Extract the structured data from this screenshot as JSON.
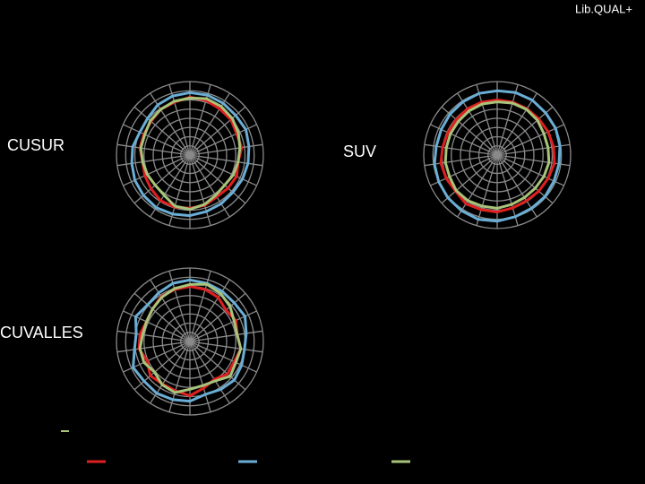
{
  "header": {
    "title": "Lib.QUAL+"
  },
  "chart_data": [
    {
      "type": "radar",
      "title": "CUSUR",
      "rlim": [
        1,
        9
      ],
      "rticks": [
        1,
        2,
        3,
        4,
        5,
        6,
        7,
        8,
        9
      ],
      "grid": true,
      "series": [
        {
          "color": "#e02020",
          "values": [
            7.3,
            7.2,
            7.0,
            6.9,
            6.6,
            6.7,
            6.3,
            6.6,
            6.5,
            6.4,
            6.7,
            6.8,
            6.9,
            6.9,
            6.6,
            6.4,
            6.2,
            6.5,
            6.5,
            6.6,
            6.9,
            7.0
          ]
        },
        {
          "color": "#6aaed6",
          "values": [
            7.8,
            7.8,
            7.7,
            7.6,
            7.7,
            7.5,
            7.4,
            7.3,
            7.2,
            7.3,
            7.4,
            7.6,
            7.7,
            7.8,
            7.7,
            7.6,
            7.4,
            7.3,
            7.0,
            7.1,
            7.5,
            7.7
          ]
        },
        {
          "color": "#a8c47a",
          "values": [
            7.2,
            7.4,
            7.3,
            7.1,
            6.8,
            6.5,
            6.3,
            6.2,
            6.0,
            6.2,
            6.6,
            6.9,
            6.8,
            6.2,
            6.0,
            6.1,
            6.2,
            6.4,
            6.4,
            6.7,
            6.9,
            7.1
          ]
        }
      ]
    },
    {
      "type": "radar",
      "title": "SUV",
      "rlim": [
        1,
        9
      ],
      "rticks": [
        1,
        2,
        3,
        4,
        5,
        6,
        7,
        8,
        9
      ],
      "grid": true,
      "series": [
        {
          "color": "#e02020",
          "values": [
            7.0,
            7.0,
            7.0,
            7.0,
            7.1,
            7.2,
            7.3,
            7.1,
            7.0,
            6.9,
            7.0,
            7.2,
            7.2,
            7.3,
            7.0,
            7.1,
            7.2,
            7.0,
            6.9,
            6.9,
            7.0,
            7.0
          ]
        },
        {
          "color": "#6aaed6",
          "values": [
            8.0,
            8.1,
            8.1,
            8.0,
            8.0,
            7.9,
            7.8,
            7.8,
            7.9,
            7.9,
            8.0,
            8.2,
            8.3,
            8.2,
            8.1,
            8.0,
            7.9,
            7.7,
            7.7,
            7.8,
            7.9,
            8.0
          ]
        },
        {
          "color": "#a8c47a",
          "values": [
            6.8,
            6.9,
            6.9,
            6.8,
            6.6,
            6.6,
            6.7,
            6.6,
            6.5,
            6.5,
            6.6,
            6.8,
            6.8,
            6.9,
            6.9,
            6.7,
            6.7,
            6.6,
            6.6,
            6.6,
            6.7,
            6.8
          ]
        }
      ]
    },
    {
      "type": "radar",
      "title": "CUVALLES",
      "rlim": [
        1,
        9
      ],
      "rticks": [
        1,
        2,
        3,
        4,
        5,
        6,
        7,
        8,
        9
      ],
      "grid": true,
      "series": [
        {
          "color": "#e02020",
          "values": [
            7.0,
            6.9,
            6.7,
            6.2,
            6.5,
            6.2,
            6.6,
            6.3,
            6.4,
            5.9,
            6.3,
            6.9,
            6.6,
            6.5,
            6.7,
            6.1,
            6.6,
            6.5,
            6.2,
            6.4,
            6.8,
            6.9
          ]
        },
        {
          "color": "#6aaed6",
          "values": [
            7.7,
            7.6,
            7.5,
            7.4,
            7.6,
            7.2,
            7.0,
            7.2,
            7.4,
            7.2,
            7.0,
            7.5,
            7.6,
            7.7,
            7.6,
            7.8,
            7.1,
            6.9,
            7.5,
            7.1,
            7.3,
            7.6
          ]
        },
        {
          "color": "#a8c47a",
          "values": [
            7.2,
            7.5,
            7.2,
            6.8,
            6.3,
            6.2,
            6.6,
            6.5,
            6.8,
            6.1,
            6.0,
            6.2,
            6.8,
            6.6,
            6.1,
            6.5,
            6.5,
            6.2,
            6.2,
            6.4,
            6.7,
            7.0
          ]
        }
      ]
    }
  ]
}
